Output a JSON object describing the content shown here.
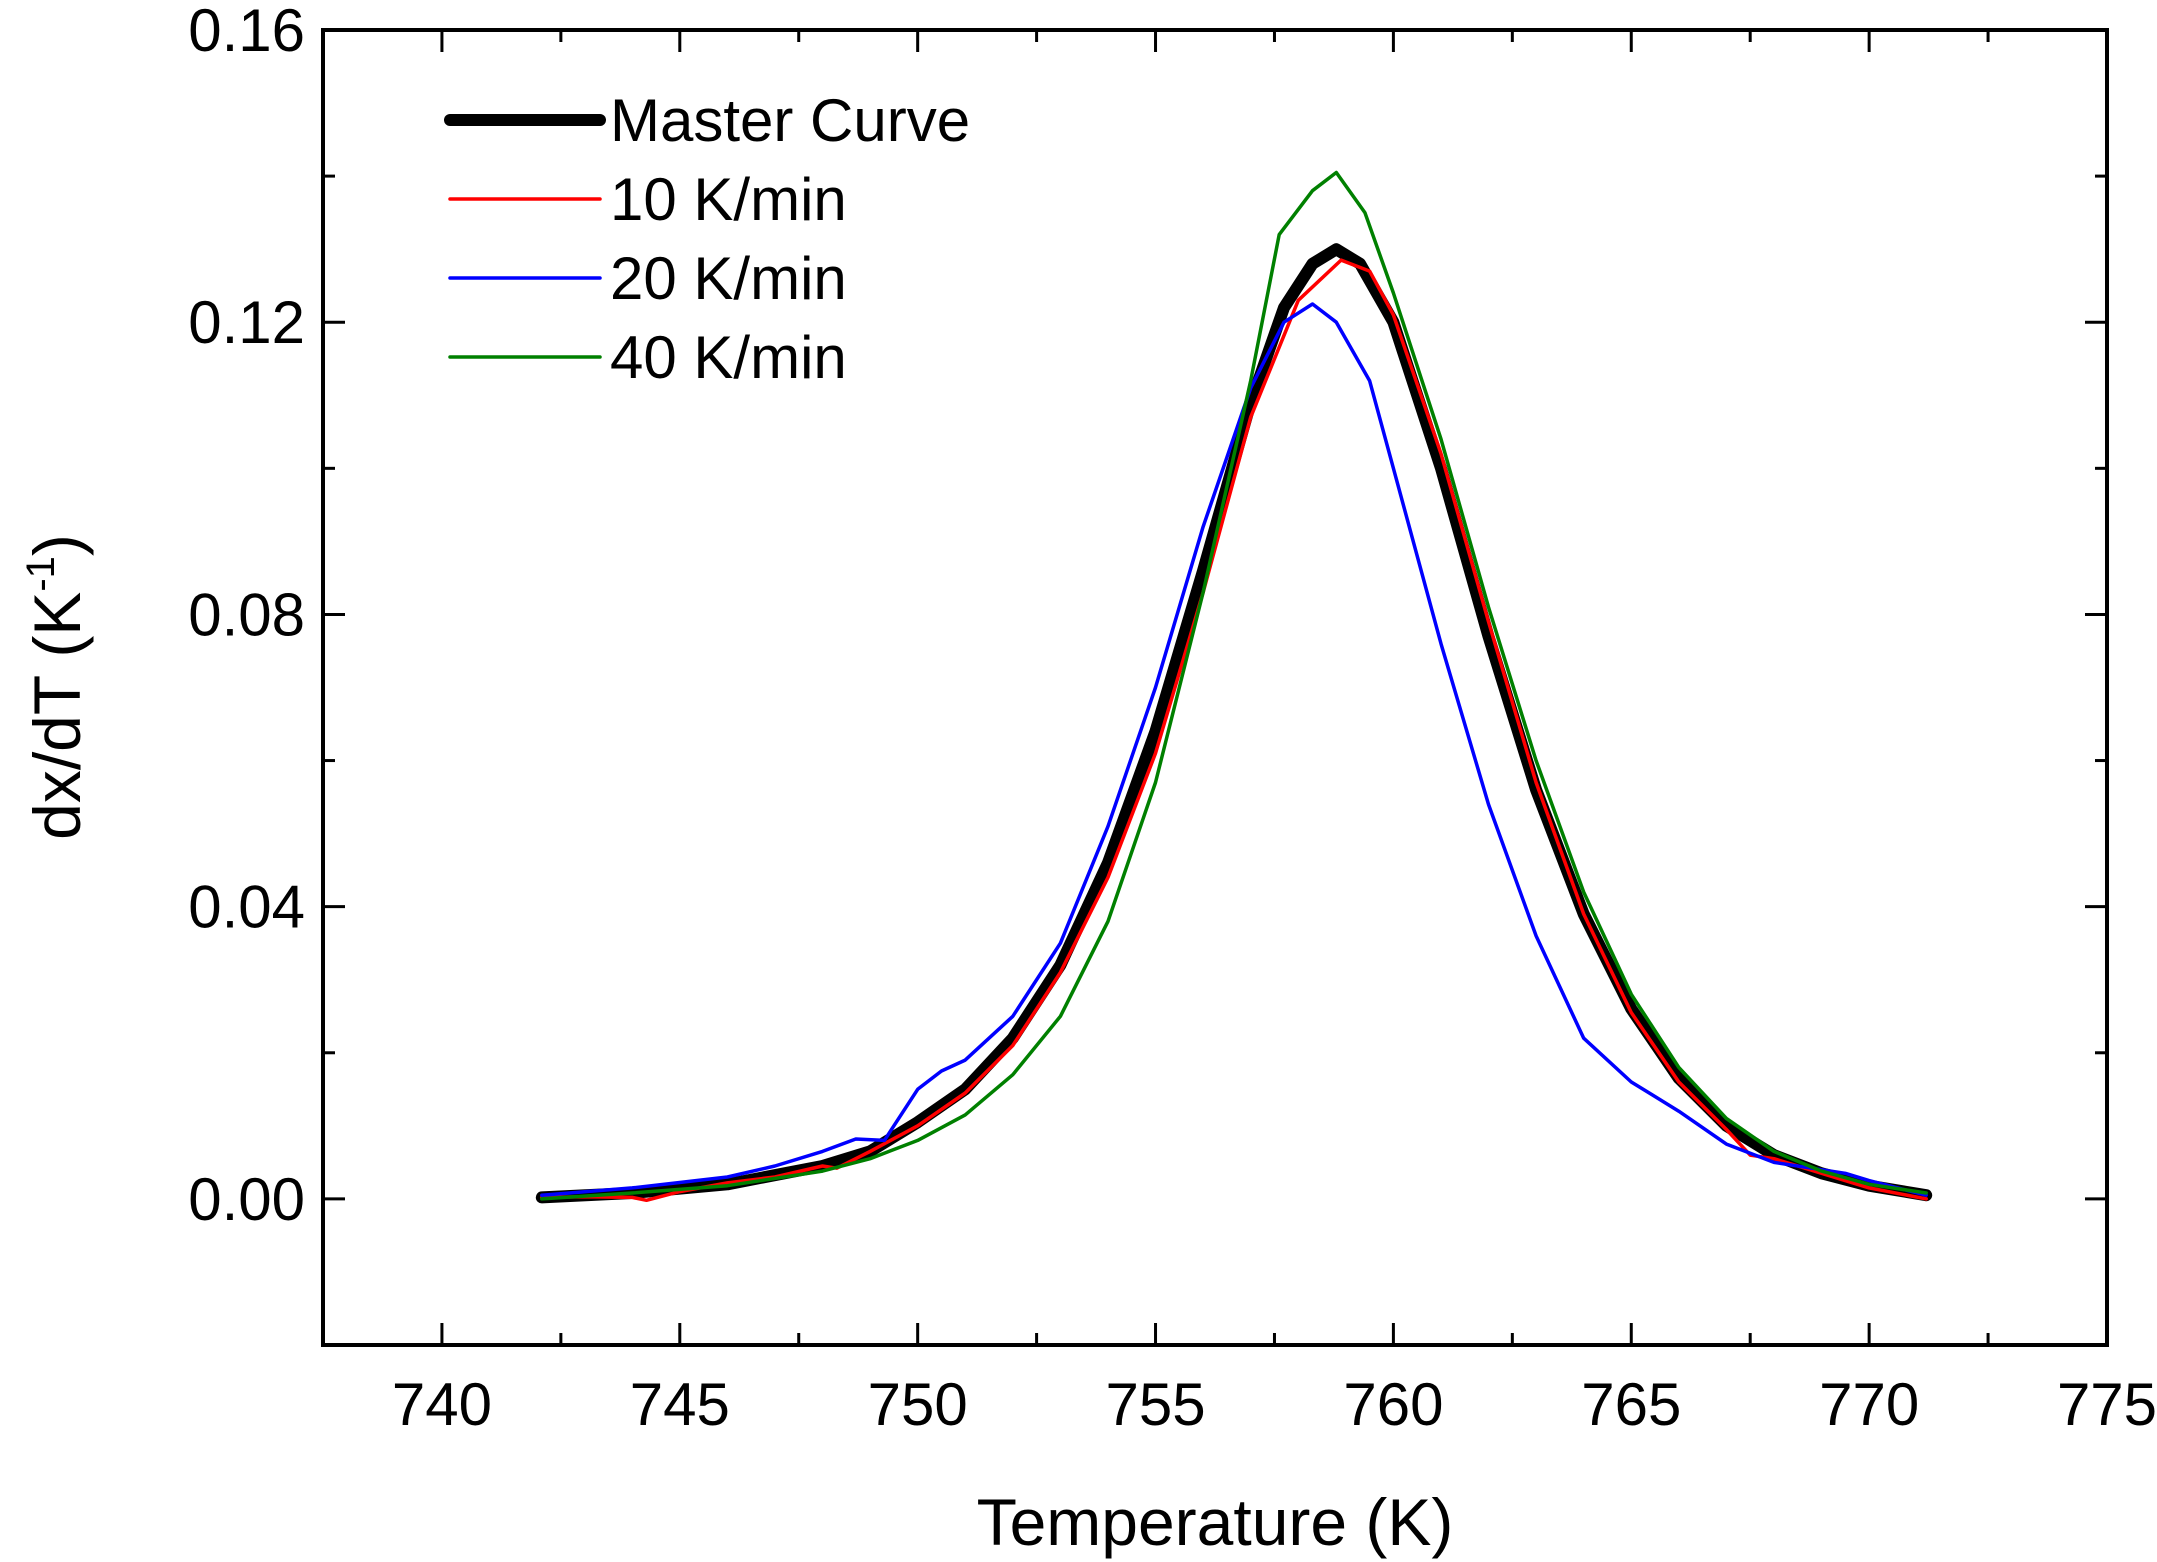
{
  "chart_data": {
    "type": "line",
    "title": "",
    "xlabel": "Temperature (K)",
    "ylabel": {
      "main": "dx/dT (K",
      "sup": "-1",
      "close": ")"
    },
    "xlim": [
      737.5,
      775
    ],
    "ylim": [
      -0.02,
      0.16
    ],
    "xticks": [
      740,
      745,
      750,
      755,
      760,
      765,
      770,
      775
    ],
    "xtick_labels": [
      "740",
      "745",
      "750",
      "755",
      "760",
      "765",
      "770",
      "775"
    ],
    "yticks": [
      0.0,
      0.04,
      0.08,
      0.12,
      0.16
    ],
    "ytick_labels": [
      "0.00",
      "0.04",
      "0.08",
      "0.12",
      "0.16"
    ],
    "legend_position": "top-left",
    "series": [
      {
        "name": "Master Curve",
        "color": "#000000",
        "width": "thick",
        "points": [
          [
            742.1,
            0.0002
          ],
          [
            744,
            0.0008
          ],
          [
            746,
            0.002
          ],
          [
            748,
            0.0045
          ],
          [
            749,
            0.0065
          ],
          [
            750,
            0.0105
          ],
          [
            751,
            0.015
          ],
          [
            752,
            0.022
          ],
          [
            753,
            0.032
          ],
          [
            754,
            0.046
          ],
          [
            755,
            0.064
          ],
          [
            756,
            0.086
          ],
          [
            757,
            0.109
          ],
          [
            757.7,
            0.122
          ],
          [
            758.3,
            0.128
          ],
          [
            758.8,
            0.13
          ],
          [
            759.3,
            0.128
          ],
          [
            760,
            0.12
          ],
          [
            761,
            0.1
          ],
          [
            762,
            0.077
          ],
          [
            763,
            0.056
          ],
          [
            764,
            0.039
          ],
          [
            765,
            0.026
          ],
          [
            766,
            0.0165
          ],
          [
            767,
            0.01
          ],
          [
            768,
            0.006
          ],
          [
            769,
            0.0035
          ],
          [
            770,
            0.0018
          ],
          [
            771.2,
            0.0005
          ]
        ]
      },
      {
        "name": "10 K/min",
        "color": "#ff0000",
        "width": "thin",
        "points": [
          [
            742.1,
            0.0002
          ],
          [
            743,
            0.0003
          ],
          [
            744,
            0.0002
          ],
          [
            744.3,
            -0.0002
          ],
          [
            745,
            0.001
          ],
          [
            746,
            0.0022
          ],
          [
            747,
            0.003
          ],
          [
            748,
            0.0045
          ],
          [
            748.3,
            0.0042
          ],
          [
            749,
            0.0065
          ],
          [
            750,
            0.01
          ],
          [
            751,
            0.0145
          ],
          [
            752,
            0.021
          ],
          [
            753,
            0.031
          ],
          [
            754,
            0.044
          ],
          [
            755,
            0.061
          ],
          [
            756,
            0.083
          ],
          [
            757,
            0.107
          ],
          [
            758,
            0.123
          ],
          [
            758.9,
            0.1285
          ],
          [
            759.5,
            0.127
          ],
          [
            760,
            0.121
          ],
          [
            761,
            0.102
          ],
          [
            762,
            0.079
          ],
          [
            763,
            0.057
          ],
          [
            764,
            0.039
          ],
          [
            765,
            0.0255
          ],
          [
            766,
            0.016
          ],
          [
            767,
            0.0095
          ],
          [
            767.5,
            0.006
          ],
          [
            768,
            0.0055
          ],
          [
            769,
            0.0035
          ],
          [
            770,
            0.0015
          ],
          [
            771.2,
            0.0
          ]
        ]
      },
      {
        "name": "20 K/min",
        "color": "#0000ff",
        "width": "thin",
        "points": [
          [
            742.1,
            0.0005
          ],
          [
            744,
            0.0015
          ],
          [
            746,
            0.003
          ],
          [
            747,
            0.0045
          ],
          [
            748,
            0.0065
          ],
          [
            748.7,
            0.0082
          ],
          [
            749.3,
            0.008
          ],
          [
            750,
            0.015
          ],
          [
            750.5,
            0.0175
          ],
          [
            751,
            0.019
          ],
          [
            752,
            0.025
          ],
          [
            753,
            0.035
          ],
          [
            754,
            0.051
          ],
          [
            755,
            0.07
          ],
          [
            756,
            0.092
          ],
          [
            757,
            0.111
          ],
          [
            757.7,
            0.12
          ],
          [
            758.3,
            0.1225
          ],
          [
            758.8,
            0.12
          ],
          [
            759.5,
            0.112
          ],
          [
            760,
            0.1
          ],
          [
            761,
            0.076
          ],
          [
            762,
            0.054
          ],
          [
            763,
            0.036
          ],
          [
            764,
            0.022
          ],
          [
            765,
            0.016
          ],
          [
            766,
            0.012
          ],
          [
            767,
            0.0075
          ],
          [
            768,
            0.005
          ],
          [
            769,
            0.004
          ],
          [
            769.5,
            0.0035
          ],
          [
            770,
            0.0025
          ],
          [
            771.2,
            0.0005
          ]
        ]
      },
      {
        "name": "40 K/min",
        "color": "#008000",
        "width": "thin",
        "points": [
          [
            742.1,
            0.0
          ],
          [
            744,
            0.0008
          ],
          [
            746,
            0.0018
          ],
          [
            748,
            0.0038
          ],
          [
            749,
            0.0055
          ],
          [
            750,
            0.008
          ],
          [
            751,
            0.0115
          ],
          [
            752,
            0.017
          ],
          [
            753,
            0.025
          ],
          [
            754,
            0.038
          ],
          [
            755,
            0.057
          ],
          [
            756,
            0.083
          ],
          [
            757,
            0.112
          ],
          [
            757.6,
            0.132
          ],
          [
            758.3,
            0.138
          ],
          [
            758.8,
            0.1405
          ],
          [
            759.4,
            0.135
          ],
          [
            760,
            0.124
          ],
          [
            761,
            0.104
          ],
          [
            762,
            0.081
          ],
          [
            763,
            0.06
          ],
          [
            764,
            0.042
          ],
          [
            765,
            0.028
          ],
          [
            766,
            0.018
          ],
          [
            767,
            0.011
          ],
          [
            768,
            0.0065
          ],
          [
            769,
            0.0038
          ],
          [
            770,
            0.002
          ],
          [
            771.2,
            0.0008
          ]
        ]
      }
    ]
  }
}
